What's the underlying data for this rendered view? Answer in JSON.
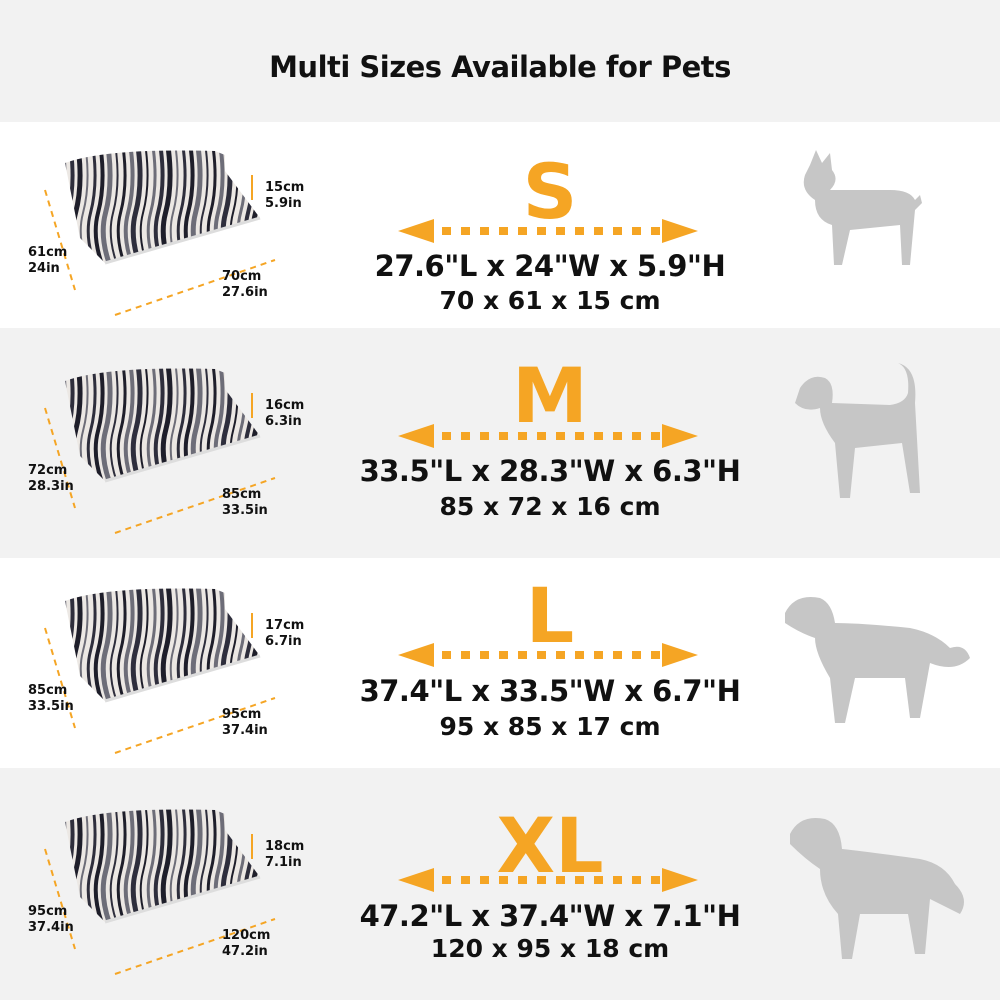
{
  "title": "Multi Sizes Available for Pets",
  "colors": {
    "accent": "#f5a524",
    "gray_band": "#f2f2f2",
    "dog": "#c6c6c6"
  },
  "sizes": [
    {
      "size": "S",
      "inches": "27.6\"L x 24\"W x 5.9\"H",
      "cm": "70 x 61 x 15 cm",
      "height_cm": "15cm",
      "height_in": "5.9in",
      "width_cm": "61cm",
      "width_in": "24in",
      "length_cm": "70cm",
      "length_in": "27.6in",
      "dog": "small-dog-silhouette"
    },
    {
      "size": "M",
      "inches": "33.5\"L x 28.3\"W x 6.3\"H",
      "cm": "85 x 72 x 16 cm",
      "height_cm": "16cm",
      "height_in": "6.3in",
      "width_cm": "72cm",
      "width_in": "28.3in",
      "length_cm": "85cm",
      "length_in": "33.5in",
      "dog": "medium-dog-silhouette"
    },
    {
      "size": "L",
      "inches": "37.4\"L x 33.5\"W x 6.7\"H",
      "cm": "95 x 85 x 17 cm",
      "height_cm": "17cm",
      "height_in": "6.7in",
      "width_cm": "85cm",
      "width_in": "33.5in",
      "length_cm": "95cm",
      "length_in": "37.4in",
      "dog": "large-dog-silhouette"
    },
    {
      "size": "XL",
      "inches": "47.2\"L x 37.4\"W x 7.1\"H",
      "cm": "120 x 95 x 18 cm",
      "height_cm": "18cm",
      "height_in": "7.1in",
      "width_cm": "95cm",
      "width_in": "37.4in",
      "length_cm": "120cm",
      "length_in": "47.2in",
      "dog": "xl-dog-silhouette"
    }
  ]
}
